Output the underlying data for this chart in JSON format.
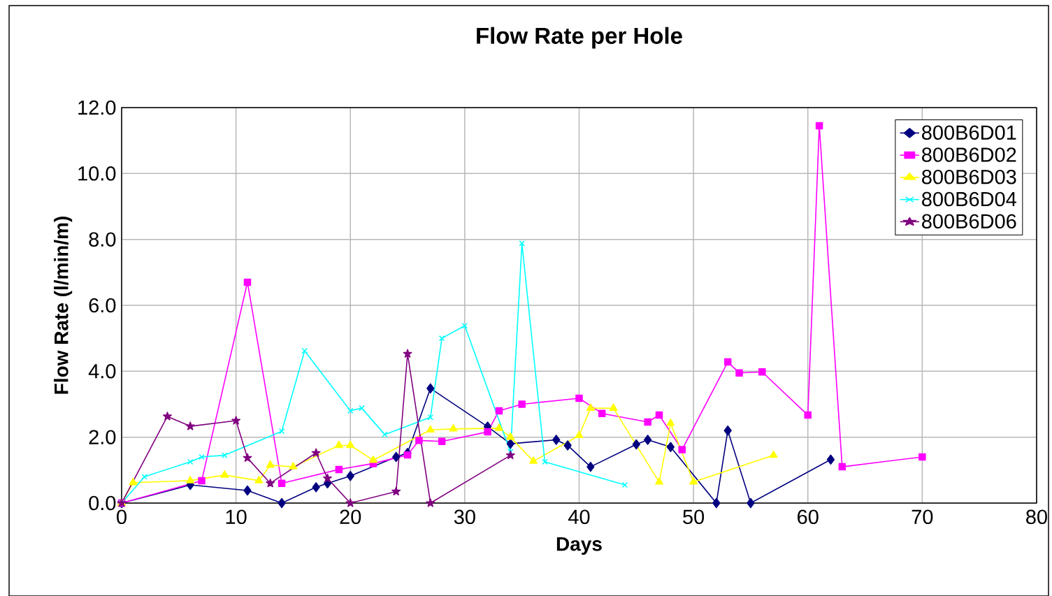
{
  "chart_data": {
    "type": "line",
    "title": "Flow Rate per Hole",
    "xlabel": "Days",
    "ylabel": "Flow Rate (l/min/m)",
    "xlim": [
      0,
      80
    ],
    "xticks": [
      0,
      10,
      20,
      30,
      40,
      50,
      60,
      70,
      80
    ],
    "ylim": [
      0,
      12
    ],
    "yticks": [
      {
        "value": 0,
        "label": "0.0"
      },
      {
        "value": 2,
        "label": "2.0"
      },
      {
        "value": 4,
        "label": "4.0"
      },
      {
        "value": 6,
        "label": "6.0"
      },
      {
        "value": 8,
        "label": "8.0"
      },
      {
        "value": 10,
        "label": "10.0"
      },
      {
        "value": 12,
        "label": "12.0"
      }
    ],
    "grid": true,
    "legend": "top right",
    "line_style": "solid",
    "series": [
      {
        "name": "800B6D01",
        "color": "#000080",
        "marker": "diamond",
        "x": [
          0,
          6,
          11,
          14,
          17,
          18,
          20,
          24,
          25,
          27,
          32,
          34,
          38,
          39,
          41,
          45,
          46,
          48,
          52,
          53,
          55,
          62
        ],
        "values": [
          0,
          0.55,
          0.38,
          0,
          0.48,
          0.6,
          0.82,
          1.4,
          1.52,
          3.48,
          2.32,
          1.8,
          1.92,
          1.75,
          1.1,
          1.78,
          1.92,
          1.7,
          0,
          2.2,
          0,
          1.32
        ]
      },
      {
        "name": "800B6D02",
        "color": "#ff00ff",
        "marker": "square",
        "x": [
          0,
          7,
          11,
          14,
          19,
          22,
          25,
          26,
          28,
          32,
          33,
          35,
          40,
          42,
          46,
          47,
          49,
          53,
          54,
          56,
          60,
          61,
          63,
          70
        ],
        "values": [
          0,
          0.68,
          6.7,
          0.6,
          1.02,
          1.2,
          1.46,
          1.9,
          1.87,
          2.16,
          2.8,
          3.0,
          3.18,
          2.72,
          2.46,
          2.67,
          1.62,
          4.28,
          3.95,
          3.98,
          2.67,
          11.45,
          1.1,
          1.4
        ]
      },
      {
        "name": "800B6D03",
        "color": "#ffff00",
        "marker": "triangle",
        "x": [
          0,
          1,
          6,
          9,
          12,
          13,
          15,
          19,
          20,
          22,
          27,
          29,
          33,
          34,
          36,
          40,
          41,
          43,
          47,
          48,
          50,
          57
        ],
        "values": [
          0,
          0.62,
          0.68,
          0.85,
          0.68,
          1.15,
          1.1,
          1.75,
          1.75,
          1.3,
          2.22,
          2.25,
          2.27,
          2.0,
          1.27,
          2.05,
          2.88,
          2.88,
          0.64,
          2.42,
          0.64,
          1.45
        ]
      },
      {
        "name": "800B6D04",
        "color": "#00ffff",
        "marker": "cross",
        "x": [
          0,
          2,
          6,
          7,
          9,
          14,
          16,
          20,
          21,
          23,
          27,
          28,
          30,
          34,
          35,
          37,
          44
        ],
        "values": [
          0,
          0.8,
          1.25,
          1.4,
          1.45,
          2.18,
          4.62,
          2.8,
          2.88,
          2.08,
          2.6,
          5.0,
          5.38,
          1.55,
          7.88,
          1.25,
          0.55
        ]
      },
      {
        "name": "800B6D06",
        "color": "#800080",
        "marker": "star",
        "x": [
          0,
          4,
          6,
          10,
          11,
          13,
          17,
          18,
          20,
          24,
          25,
          27,
          34
        ],
        "values": [
          0,
          2.63,
          2.33,
          2.5,
          1.37,
          0.6,
          1.52,
          0.75,
          0,
          0.35,
          4.53,
          0,
          1.45
        ]
      }
    ]
  }
}
